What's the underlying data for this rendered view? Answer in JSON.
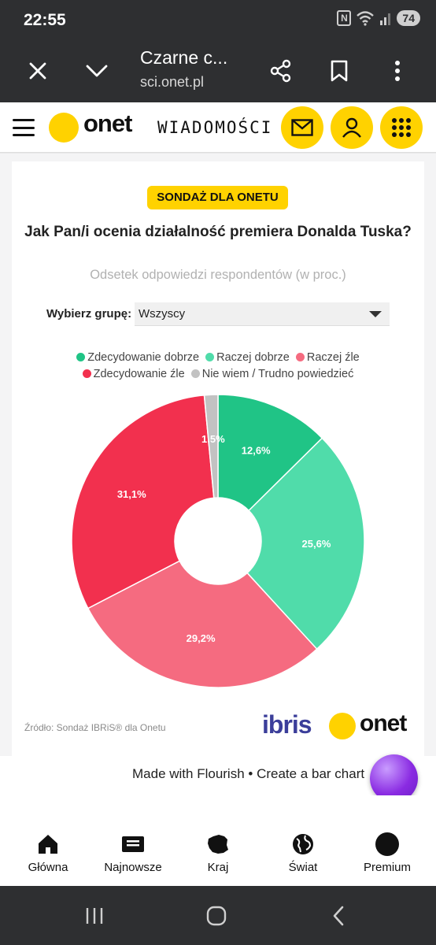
{
  "status_bar": {
    "time": "22:55",
    "battery": "74",
    "nfc_glyph": "N"
  },
  "browser_tab": {
    "title": "Czarne c...",
    "url": "sci.onet.pl",
    "icons": [
      "close-icon",
      "chevron-down-icon",
      "share-icon",
      "bookmark-icon",
      "more-vertical-icon"
    ]
  },
  "site_header": {
    "logo": "onet",
    "section": "WIADOMOŚCI",
    "buttons": [
      "mail-icon",
      "user-icon",
      "apps-grid-icon"
    ],
    "accent_color": "#ffd200"
  },
  "survey": {
    "badge": "SONDAŻ DLA ONETU",
    "title": "Jak Pan/i ocenia działalność premiera Donalda Tuska?",
    "subtitle": "Odsetek odpowiedzi respondentów (w proc.)",
    "group_label": "Wybierz grupę:",
    "group_selected": "Wszyscy",
    "source": "Źródło: Sondaż IBRiS® dla Onetu",
    "partner_logo": "ibris",
    "brand_logo": "onet"
  },
  "chart_data": {
    "type": "pie",
    "donut": true,
    "categories": [
      "Zdecydowanie dobrze",
      "Raczej dobrze",
      "Raczej źle",
      "Zdecydowanie źle",
      "Nie wiem / Trudno powiedzieć"
    ],
    "values": [
      12.6,
      25.6,
      29.2,
      31.1,
      1.5
    ],
    "labels": [
      "12,6%",
      "25,6%",
      "29,2%",
      "31,1%",
      "1,5%"
    ],
    "colors": [
      "#20c486",
      "#50dcaa",
      "#f56b80",
      "#f2304e",
      "#c2c2c2"
    ],
    "legend_position": "top"
  },
  "footer": {
    "flourish_text": "Made with Flourish • Create a bar chart"
  },
  "bottom_nav": [
    {
      "label": "Główna",
      "icon": "home-icon"
    },
    {
      "label": "Najnowsze",
      "icon": "newspaper-icon"
    },
    {
      "label": "Kraj",
      "icon": "poland-map-icon"
    },
    {
      "label": "Świat",
      "icon": "globe-icon"
    },
    {
      "label": "Premium",
      "icon": "premium-circle-icon"
    }
  ]
}
